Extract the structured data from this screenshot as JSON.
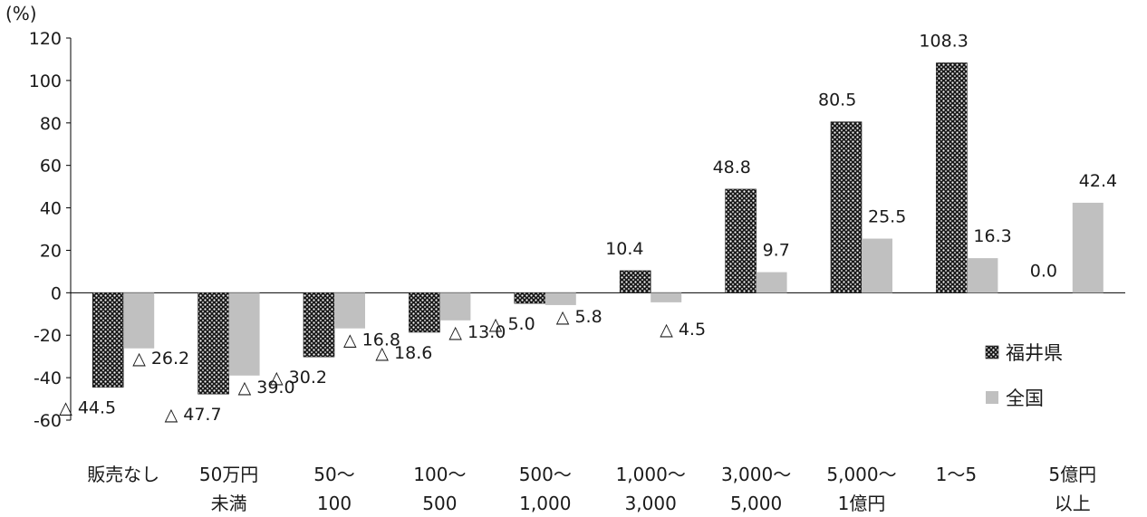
{
  "chart_data": {
    "type": "bar",
    "unit_label": "(%)",
    "ylim": [
      -60,
      120
    ],
    "y_ticks": [
      120,
      100,
      80,
      60,
      40,
      20,
      0,
      -20,
      -40,
      -60
    ],
    "grid": false,
    "legend_position": "right",
    "categories": [
      [
        "販売なし"
      ],
      [
        "50万円",
        "未満"
      ],
      [
        "50～",
        "100"
      ],
      [
        "100～",
        "500"
      ],
      [
        "500～",
        "1,000"
      ],
      [
        "1,000～",
        "3,000"
      ],
      [
        "3,000～",
        "5,000"
      ],
      [
        "5,000～",
        "1億円"
      ],
      [
        "1～5"
      ],
      [
        "5億円",
        "以上"
      ]
    ],
    "series": [
      {
        "name": "福井県",
        "values": [
          -44.5,
          -47.7,
          -30.2,
          -18.6,
          -5.0,
          10.4,
          48.8,
          80.5,
          108.3,
          0.0
        ],
        "labels": [
          "△ 44.5",
          "△ 47.7",
          "△ 30.2",
          "△ 18.6",
          "△ 5.0",
          "10.4",
          "48.8",
          "80.5",
          "108.3",
          "0.0"
        ]
      },
      {
        "name": "全国",
        "values": [
          -26.2,
          -39.0,
          -16.8,
          -13.0,
          -5.8,
          -4.5,
          9.7,
          25.5,
          16.3,
          42.4
        ],
        "labels": [
          "△ 26.2",
          "△ 39.0",
          "△ 16.8",
          "△ 13.0",
          "△ 5.8",
          "△ 4.5",
          "9.7",
          "25.5",
          "16.3",
          "42.4"
        ]
      }
    ],
    "colors": {
      "series1": "#1a1a1a",
      "series1_dots": "#ffffff",
      "series2": "#c0c0c0",
      "axis": "#000000"
    }
  }
}
